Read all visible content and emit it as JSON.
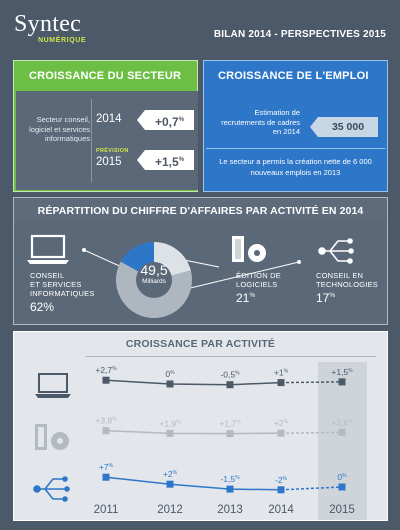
{
  "header": {
    "logo_name": "Syntec",
    "logo_sub": "NUMÉRIQUE",
    "title": "BILAN 2014 - PERSPECTIVES 2015"
  },
  "croissance_secteur": {
    "title": "CROISSANCE DU SECTEUR",
    "sector_text": "Secteur conseil, logiciel et services informatiques",
    "year_2014": "2014",
    "value_2014": "+0,7",
    "prevision": "PRÉVISION",
    "year_2015": "2015",
    "value_2015": "+1,5",
    "unit": "%"
  },
  "croissance_emploi": {
    "title": "CROISSANCE DE L'EMPLOI",
    "estimation_text": "Estimation de recrutements de cadres en 2014",
    "value": "35 000",
    "text": "Le secteur a permis la création nette de 6 000 nouveaux emplois en 2013"
  },
  "repartition": {
    "title": "RÉPARTITION DU CHIFFRE D'AFFAIRES PAR ACTIVITÉ EN 2014",
    "center_value": "49,5",
    "center_unit": "Milliards",
    "segments": [
      {
        "label_line1": "CONSEIL",
        "label_line2": "ET SERVICES",
        "label_line3": "INFORMATIQUES",
        "pct": "62%",
        "color": "#aeb6c0"
      },
      {
        "label_line1": "ÉDITION DE",
        "label_line2": "LOGICIELS",
        "pct_num": "21",
        "pct_unit": "%",
        "color": "#dde2e7"
      },
      {
        "label_line1": "CONSEIL EN",
        "label_line2": "TECHNOLOGIES",
        "pct_num": "17",
        "pct_unit": "%",
        "color": "#2e77c8"
      }
    ]
  },
  "croissance_activite": {
    "title": "CROISSANCE PAR ACTIVITÉ",
    "years": [
      "2011",
      "2012",
      "2013",
      "2014",
      "2015"
    ],
    "rows": [
      {
        "icon": "laptop-icon",
        "values": [
          "+2,7",
          "0",
          "-0,5",
          "+1",
          "+1,5"
        ],
        "color": "#4b5968"
      },
      {
        "icon": "software-icon",
        "values": [
          "+3,8",
          "+1,9",
          "+1,7",
          "+2",
          "+2,6"
        ],
        "color": "#b4bac1"
      },
      {
        "icon": "technology-icon",
        "values": [
          "+7",
          "+2",
          "-1,5",
          "-2",
          "0"
        ],
        "color": "#2e77c8"
      }
    ],
    "unit": "%"
  }
}
